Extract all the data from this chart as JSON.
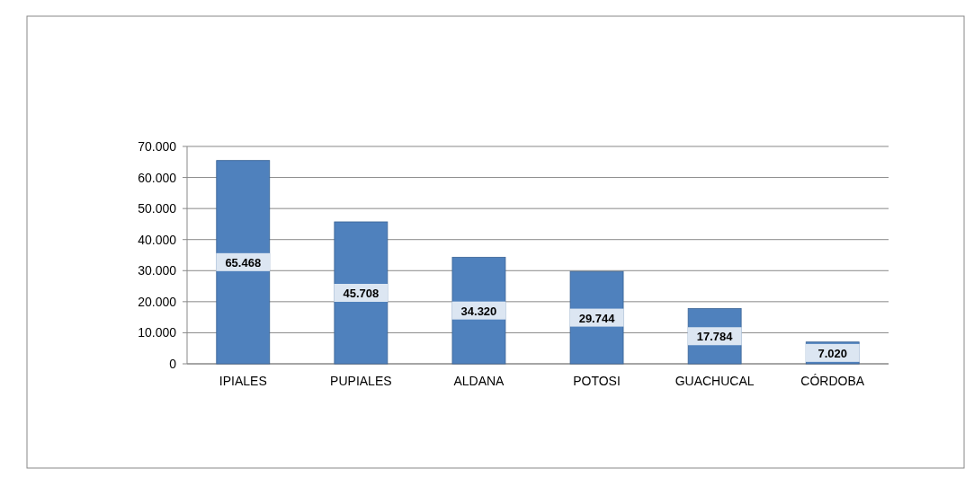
{
  "chart_data": {
    "type": "bar",
    "categories": [
      "IPIALES",
      "PUPIALES",
      "ALDANA",
      "POTOSI",
      "GUACHUCAL",
      "CÓRDOBA"
    ],
    "values": [
      65468,
      45708,
      34320,
      29744,
      17784,
      7020
    ],
    "value_labels": [
      "65.468",
      "45.708",
      "34.320",
      "29.744",
      "17.784",
      "7.020"
    ],
    "color": "#4f81bd",
    "ylim": [
      0,
      70000
    ],
    "yticks": [
      {
        "value": 0,
        "label": "0"
      },
      {
        "value": 10000,
        "label": "10.000"
      },
      {
        "value": 20000,
        "label": "20.000"
      },
      {
        "value": 30000,
        "label": "30.000"
      },
      {
        "value": 40000,
        "label": "40.000"
      },
      {
        "value": 50000,
        "label": "50.000"
      },
      {
        "value": 60000,
        "label": "60.000"
      },
      {
        "value": 70000,
        "label": "70.000"
      }
    ],
    "grid": "y"
  }
}
